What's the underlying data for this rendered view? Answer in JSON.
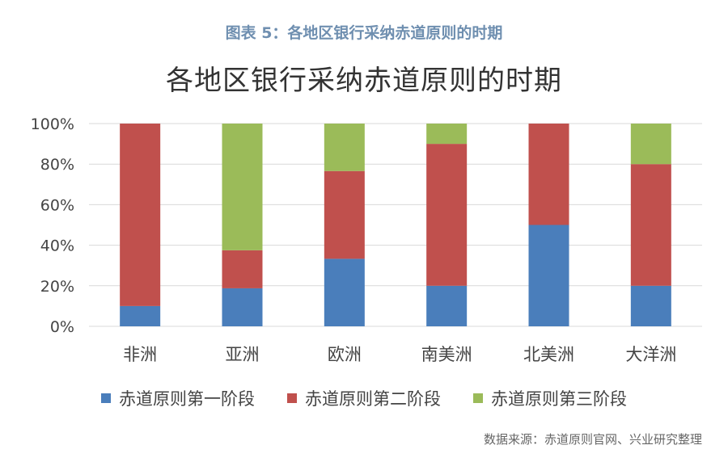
{
  "caption": "图表 5：各地区银行采纳赤道原则的时期",
  "source": "数据来源：赤道原则官网、兴业研究整理",
  "colors": [
    "#4a7ebb",
    "#c0504d",
    "#9bbb59"
  ],
  "chart_data": {
    "type": "bar",
    "stacked": true,
    "title": "各地区银行采纳赤道原则的时期",
    "categories": [
      "非洲",
      "亚洲",
      "欧洲",
      "南美洲",
      "北美洲",
      "大洋洲"
    ],
    "series": [
      {
        "name": "赤道原则第一阶段",
        "values": [
          10,
          18.75,
          33.3,
          20,
          50,
          20
        ]
      },
      {
        "name": "赤道原则第二阶段",
        "values": [
          90,
          18.75,
          43.3,
          70,
          50,
          60
        ]
      },
      {
        "name": "赤道原则第三阶段",
        "values": [
          0,
          62.5,
          23.4,
          10,
          0,
          20
        ]
      }
    ],
    "yticks": [
      "0%",
      "20%",
      "40%",
      "60%",
      "80%",
      "100%"
    ],
    "ylim": [
      0,
      100
    ],
    "grid": true,
    "legend_position": "bottom"
  }
}
